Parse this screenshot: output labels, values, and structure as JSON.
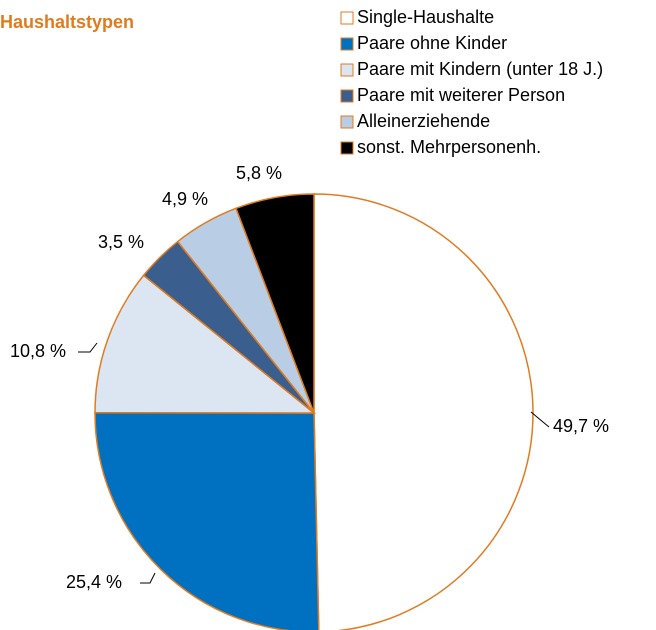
{
  "chart_data": {
    "type": "pie",
    "title": "Haushaltstypen",
    "categories": [
      "Single-Haushalte",
      "Paare ohne Kinder",
      "Paare mit Kindern (unter 18 J.)",
      "Paare mit weiterer Person",
      "Alleinerziehende",
      "sonst. Mehrpersonenh."
    ],
    "values": [
      49.7,
      25.4,
      10.8,
      3.5,
      4.9,
      5.8
    ],
    "value_labels": [
      "49,7 %",
      "25,4 %",
      "10,8 %",
      "3,5 %",
      "4,9 %",
      "5,8 %"
    ],
    "colors": [
      "#ffffff",
      "#0070c0",
      "#dce6f2",
      "#3a5f8f",
      "#b9cde5",
      "#000000"
    ],
    "edge_color": "#e07b20"
  }
}
